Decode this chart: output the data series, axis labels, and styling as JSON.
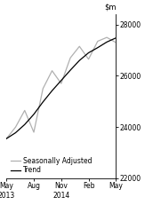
{
  "xlim_min": 0,
  "xlim_max": 12,
  "ylim_min": 22000,
  "ylim_max": 28400,
  "yticks": [
    22000,
    24000,
    26000,
    28000
  ],
  "xtick_positions": [
    0,
    3,
    6,
    9,
    12
  ],
  "xtick_labels_top": [
    "May",
    "Aug",
    "Nov",
    "Feb",
    "May"
  ],
  "xtick_labels_bot": [
    "2013",
    "",
    "2014",
    "",
    ""
  ],
  "trend_x": [
    0,
    1,
    2,
    3,
    4,
    5,
    6,
    7,
    8,
    9,
    10,
    11,
    12
  ],
  "trend_y": [
    23550,
    23780,
    24100,
    24500,
    24980,
    25420,
    25820,
    26220,
    26600,
    26900,
    27100,
    27320,
    27480
  ],
  "seas_adj_x": [
    0,
    1,
    2,
    3,
    4,
    5,
    6,
    7,
    8,
    9,
    10,
    11,
    12
  ],
  "seas_adj_y": [
    23550,
    24000,
    24650,
    23800,
    25500,
    26200,
    25700,
    26700,
    27150,
    26650,
    27350,
    27500,
    27300
  ],
  "trend_color": "#000000",
  "seas_adj_color": "#b0b0b0",
  "trend_lw": 0.9,
  "seas_adj_lw": 0.9,
  "legend_trend": "Trend",
  "legend_seas": "Seasonally Adjusted",
  "bg_color": "#ffffff",
  "title_fontsize": 6,
  "tick_fontsize": 5.5,
  "legend_fontsize": 5.5
}
